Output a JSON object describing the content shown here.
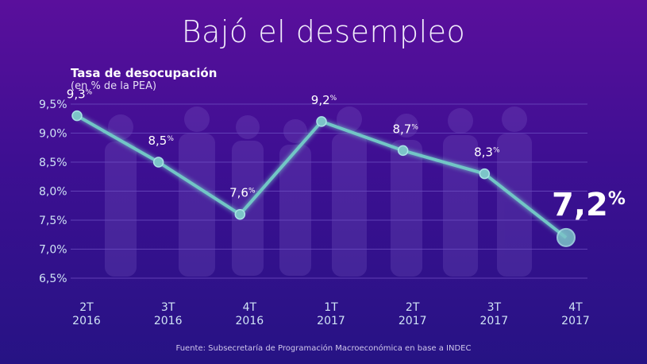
{
  "title": "Bajó el desempleo",
  "chart_title": "Tasa de desocupación",
  "chart_subtitle": "(en % de la PEA)",
  "source": "Fuente: Subsecretaría de Programación Macroeconómica en base a INDEC",
  "colors": {
    "line": "#72c6c6",
    "marker": "#7cc4c8",
    "text": "#ffffff",
    "axis_text": "#cfe3f5",
    "gridline": "#6b4bbf"
  },
  "chart_data": {
    "type": "line",
    "title": "Tasa de desocupación",
    "subtitle": "(en % de la PEA)",
    "xlabel": "",
    "ylabel": "",
    "categories": [
      [
        "2T",
        "2016"
      ],
      [
        "3T",
        "2016"
      ],
      [
        "4T",
        "2016"
      ],
      [
        "1T",
        "2017"
      ],
      [
        "2T",
        "2017"
      ],
      [
        "3T",
        "2017"
      ],
      [
        "4T",
        "2017"
      ]
    ],
    "values": [
      9.3,
      8.5,
      7.6,
      9.2,
      8.7,
      8.3,
      7.2
    ],
    "value_labels": [
      "9,3",
      "8,5",
      "7,6",
      "9,2",
      "8,7",
      "8,3",
      "7,2"
    ],
    "label_suffix": "%",
    "highlight_last": true,
    "yticks": [
      "9,5%",
      "9,0%",
      "8,5%",
      "8,0%",
      "7,5%",
      "7,0%",
      "6,5%"
    ],
    "ytick_values": [
      9.5,
      9.0,
      8.5,
      8.0,
      7.5,
      7.0,
      6.5
    ],
    "ylim": [
      6.5,
      9.5
    ],
    "grid": true
  }
}
